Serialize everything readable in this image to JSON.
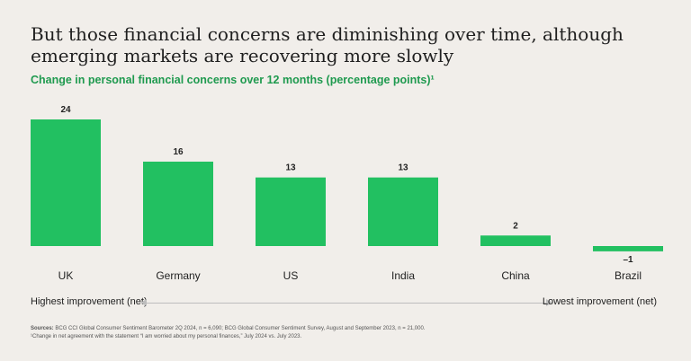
{
  "header": {
    "title": "But those financial concerns are diminishing over time, although emerging markets are recovering more slowly",
    "subtitle": "Change in personal financial concerns over 12 months (percentage points)¹"
  },
  "chart_data": {
    "type": "bar",
    "title": "Change in personal financial concerns over 12 months (percentage points)¹",
    "categories": [
      "UK",
      "Germany",
      "US",
      "India",
      "China",
      "Brazil"
    ],
    "values": [
      24,
      16,
      13,
      13,
      2,
      -1
    ],
    "value_labels": [
      "24",
      "16",
      "13",
      "13",
      "2",
      "–1"
    ],
    "xlabel": "",
    "ylabel": "",
    "ylim": [
      -1,
      24
    ],
    "color": "#22c061"
  },
  "scale": {
    "left_label": "Highest improvement (net)",
    "right_label": "Lowest improvement (net)"
  },
  "footer": {
    "sources_label": "Sources:",
    "sources_text": "BCG CCI Global Consumer Sentiment Barometer 2Q 2024, n = 6,090; BCG Global Consumer Sentiment Survey, August and September 2023, n = 21,000.",
    "footnote": "¹Change in net agreement with the statement “I am worried about my personal finances,” July 2024 vs. July 2023."
  }
}
